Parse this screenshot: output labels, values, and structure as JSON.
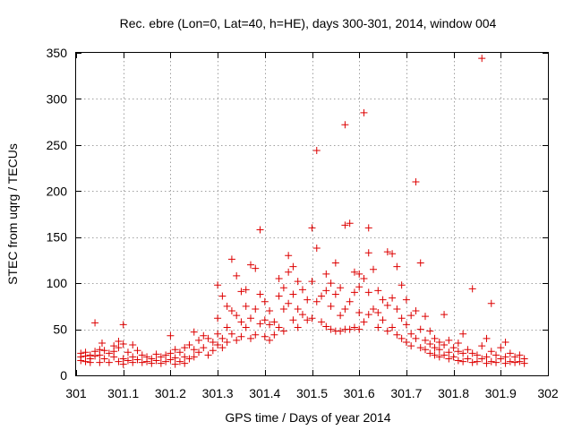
{
  "chart_data": {
    "type": "scatter",
    "title": "Rec. ebre (Lon=0, Lat=40, h=HE), days 300-301, 2014, window 004",
    "xlabel": "GPS time / Days of year 2014",
    "ylabel": "STEC from uqrg / TECUs",
    "xlim": [
      301,
      302
    ],
    "ylim": [
      0,
      350
    ],
    "xticks": [
      301,
      301.1,
      301.2,
      301.3,
      301.4,
      301.5,
      301.6,
      301.7,
      301.8,
      301.9,
      302
    ],
    "xtick_labels": [
      "301",
      "301.1",
      "301.2",
      "301.3",
      "301.4",
      "301.5",
      "301.6",
      "301.7",
      "301.8",
      "301.9",
      "302"
    ],
    "yticks": [
      0,
      50,
      100,
      150,
      200,
      250,
      300,
      350
    ],
    "ytick_labels": [
      "0",
      "50",
      "100",
      "150",
      "200",
      "250",
      "300",
      "350"
    ],
    "grid": true,
    "marker": "+",
    "series": [
      {
        "name": "STEC",
        "color": "#dd0000",
        "points": [
          [
            301.01,
            24
          ],
          [
            301.01,
            20
          ],
          [
            301.01,
            16
          ],
          [
            301.02,
            25
          ],
          [
            301.02,
            21
          ],
          [
            301.02,
            15
          ],
          [
            301.03,
            22
          ],
          [
            301.03,
            18
          ],
          [
            301.03,
            14
          ],
          [
            301.04,
            57
          ],
          [
            301.04,
            26
          ],
          [
            301.04,
            21
          ],
          [
            301.05,
            28
          ],
          [
            301.05,
            22
          ],
          [
            301.05,
            14
          ],
          [
            301.055,
            35
          ],
          [
            301.06,
            27
          ],
          [
            301.06,
            18
          ],
          [
            301.07,
            24
          ],
          [
            301.07,
            14
          ],
          [
            301.08,
            32
          ],
          [
            301.08,
            26
          ],
          [
            301.08,
            20
          ],
          [
            301.09,
            37
          ],
          [
            301.09,
            30
          ],
          [
            301.09,
            15
          ],
          [
            301.1,
            55
          ],
          [
            301.1,
            34
          ],
          [
            301.1,
            18
          ],
          [
            301.1,
            12
          ],
          [
            301.11,
            25
          ],
          [
            301.11,
            16
          ],
          [
            301.12,
            33
          ],
          [
            301.12,
            20
          ],
          [
            301.12,
            14
          ],
          [
            301.13,
            27
          ],
          [
            301.13,
            17
          ],
          [
            301.14,
            22
          ],
          [
            301.14,
            14
          ],
          [
            301.15,
            20
          ],
          [
            301.15,
            15
          ],
          [
            301.16,
            18
          ],
          [
            301.16,
            13
          ],
          [
            301.17,
            23
          ],
          [
            301.17,
            16
          ],
          [
            301.18,
            20
          ],
          [
            301.18,
            13
          ],
          [
            301.19,
            22
          ],
          [
            301.19,
            15
          ],
          [
            301.2,
            43
          ],
          [
            301.2,
            24
          ],
          [
            301.2,
            17
          ],
          [
            301.21,
            28
          ],
          [
            301.21,
            19
          ],
          [
            301.21,
            12
          ],
          [
            301.22,
            25
          ],
          [
            301.22,
            15
          ],
          [
            301.23,
            30
          ],
          [
            301.23,
            20
          ],
          [
            301.23,
            13
          ],
          [
            301.24,
            33
          ],
          [
            301.24,
            18
          ],
          [
            301.25,
            47
          ],
          [
            301.25,
            28
          ],
          [
            301.25,
            20
          ],
          [
            301.26,
            38
          ],
          [
            301.26,
            25
          ],
          [
            301.27,
            43
          ],
          [
            301.27,
            30
          ],
          [
            301.28,
            40
          ],
          [
            301.28,
            22
          ],
          [
            301.29,
            36
          ],
          [
            301.29,
            27
          ],
          [
            301.3,
            98
          ],
          [
            301.3,
            62
          ],
          [
            301.3,
            45
          ],
          [
            301.3,
            33
          ],
          [
            301.31,
            86
          ],
          [
            301.31,
            40
          ],
          [
            301.31,
            30
          ],
          [
            301.32,
            75
          ],
          [
            301.32,
            52
          ],
          [
            301.32,
            36
          ],
          [
            301.33,
            126
          ],
          [
            301.33,
            70
          ],
          [
            301.33,
            45
          ],
          [
            301.34,
            108
          ],
          [
            301.34,
            65
          ],
          [
            301.34,
            38
          ],
          [
            301.35,
            91
          ],
          [
            301.35,
            58
          ],
          [
            301.35,
            42
          ],
          [
            301.36,
            93
          ],
          [
            301.36,
            75
          ],
          [
            301.36,
            52
          ],
          [
            301.37,
            120
          ],
          [
            301.37,
            62
          ],
          [
            301.37,
            40
          ],
          [
            301.38,
            116
          ],
          [
            301.38,
            72
          ],
          [
            301.38,
            44
          ],
          [
            301.39,
            158
          ],
          [
            301.39,
            88
          ],
          [
            301.39,
            56
          ],
          [
            301.4,
            80
          ],
          [
            301.4,
            60
          ],
          [
            301.4,
            42
          ],
          [
            301.41,
            70
          ],
          [
            301.41,
            55
          ],
          [
            301.41,
            38
          ],
          [
            301.42,
            58
          ],
          [
            301.42,
            44
          ],
          [
            301.43,
            105
          ],
          [
            301.43,
            86
          ],
          [
            301.43,
            52
          ],
          [
            301.44,
            95
          ],
          [
            301.44,
            72
          ],
          [
            301.44,
            48
          ],
          [
            301.45,
            130
          ],
          [
            301.45,
            112
          ],
          [
            301.45,
            78
          ],
          [
            301.46,
            118
          ],
          [
            301.46,
            88
          ],
          [
            301.46,
            60
          ],
          [
            301.47,
            102
          ],
          [
            301.47,
            72
          ],
          [
            301.47,
            52
          ],
          [
            301.48,
            93
          ],
          [
            301.48,
            66
          ],
          [
            301.49,
            82
          ],
          [
            301.49,
            60
          ],
          [
            301.5,
            160
          ],
          [
            301.5,
            102
          ],
          [
            301.5,
            62
          ],
          [
            301.51,
            244
          ],
          [
            301.51,
            138
          ],
          [
            301.51,
            80
          ],
          [
            301.52,
            86
          ],
          [
            301.52,
            58
          ],
          [
            301.53,
            110
          ],
          [
            301.53,
            92
          ],
          [
            301.53,
            53
          ],
          [
            301.54,
            100
          ],
          [
            301.54,
            75
          ],
          [
            301.54,
            50
          ],
          [
            301.55,
            122
          ],
          [
            301.55,
            88
          ],
          [
            301.55,
            48
          ],
          [
            301.56,
            95
          ],
          [
            301.56,
            65
          ],
          [
            301.56,
            48
          ],
          [
            301.57,
            272
          ],
          [
            301.57,
            163
          ],
          [
            301.57,
            72
          ],
          [
            301.57,
            50
          ],
          [
            301.58,
            165
          ],
          [
            301.58,
            80
          ],
          [
            301.58,
            50
          ],
          [
            301.59,
            112
          ],
          [
            301.59,
            90
          ],
          [
            301.59,
            52
          ],
          [
            301.6,
            110
          ],
          [
            301.6,
            96
          ],
          [
            301.6,
            68
          ],
          [
            301.6,
            50
          ],
          [
            301.61,
            285
          ],
          [
            301.61,
            105
          ],
          [
            301.61,
            58
          ],
          [
            301.62,
            160
          ],
          [
            301.62,
            133
          ],
          [
            301.62,
            90
          ],
          [
            301.62,
            66
          ],
          [
            301.63,
            115
          ],
          [
            301.63,
            72
          ],
          [
            301.64,
            92
          ],
          [
            301.64,
            68
          ],
          [
            301.64,
            52
          ],
          [
            301.65,
            82
          ],
          [
            301.65,
            60
          ],
          [
            301.66,
            134
          ],
          [
            301.66,
            76
          ],
          [
            301.66,
            48
          ],
          [
            301.67,
            132
          ],
          [
            301.67,
            84
          ],
          [
            301.67,
            52
          ],
          [
            301.68,
            118
          ],
          [
            301.68,
            72
          ],
          [
            301.68,
            44
          ],
          [
            301.69,
            98
          ],
          [
            301.69,
            62
          ],
          [
            301.69,
            40
          ],
          [
            301.7,
            82
          ],
          [
            301.7,
            55
          ],
          [
            301.7,
            36
          ],
          [
            301.71,
            65
          ],
          [
            301.71,
            45
          ],
          [
            301.71,
            32
          ],
          [
            301.72,
            210
          ],
          [
            301.72,
            70
          ],
          [
            301.72,
            40
          ],
          [
            301.73,
            122
          ],
          [
            301.73,
            50
          ],
          [
            301.73,
            30
          ],
          [
            301.74,
            64
          ],
          [
            301.74,
            38
          ],
          [
            301.74,
            28
          ],
          [
            301.75,
            48
          ],
          [
            301.75,
            34
          ],
          [
            301.75,
            24
          ],
          [
            301.76,
            40
          ],
          [
            301.76,
            30
          ],
          [
            301.76,
            22
          ],
          [
            301.77,
            36
          ],
          [
            301.77,
            28
          ],
          [
            301.77,
            20
          ],
          [
            301.78,
            66
          ],
          [
            301.78,
            33
          ],
          [
            301.78,
            22
          ],
          [
            301.79,
            38
          ],
          [
            301.79,
            25
          ],
          [
            301.79,
            18
          ],
          [
            301.8,
            30
          ],
          [
            301.8,
            20
          ],
          [
            301.81,
            35
          ],
          [
            301.81,
            26
          ],
          [
            301.81,
            16
          ],
          [
            301.82,
            45
          ],
          [
            301.82,
            24
          ],
          [
            301.82,
            15
          ],
          [
            301.83,
            28
          ],
          [
            301.83,
            18
          ],
          [
            301.84,
            94
          ],
          [
            301.84,
            24
          ],
          [
            301.84,
            14
          ],
          [
            301.85,
            22
          ],
          [
            301.85,
            15
          ],
          [
            301.86,
            344
          ],
          [
            301.86,
            32
          ],
          [
            301.86,
            18
          ],
          [
            301.87,
            40
          ],
          [
            301.87,
            20
          ],
          [
            301.87,
            13
          ],
          [
            301.88,
            78
          ],
          [
            301.88,
            26
          ],
          [
            301.88,
            15
          ],
          [
            301.89,
            22
          ],
          [
            301.89,
            14
          ],
          [
            301.9,
            30
          ],
          [
            301.9,
            18
          ],
          [
            301.91,
            36
          ],
          [
            301.91,
            20
          ],
          [
            301.91,
            13
          ],
          [
            301.92,
            24
          ],
          [
            301.92,
            15
          ],
          [
            301.93,
            20
          ],
          [
            301.93,
            14
          ],
          [
            301.94,
            22
          ],
          [
            301.94,
            15
          ],
          [
            301.95,
            18
          ],
          [
            301.95,
            13
          ]
        ]
      }
    ]
  }
}
